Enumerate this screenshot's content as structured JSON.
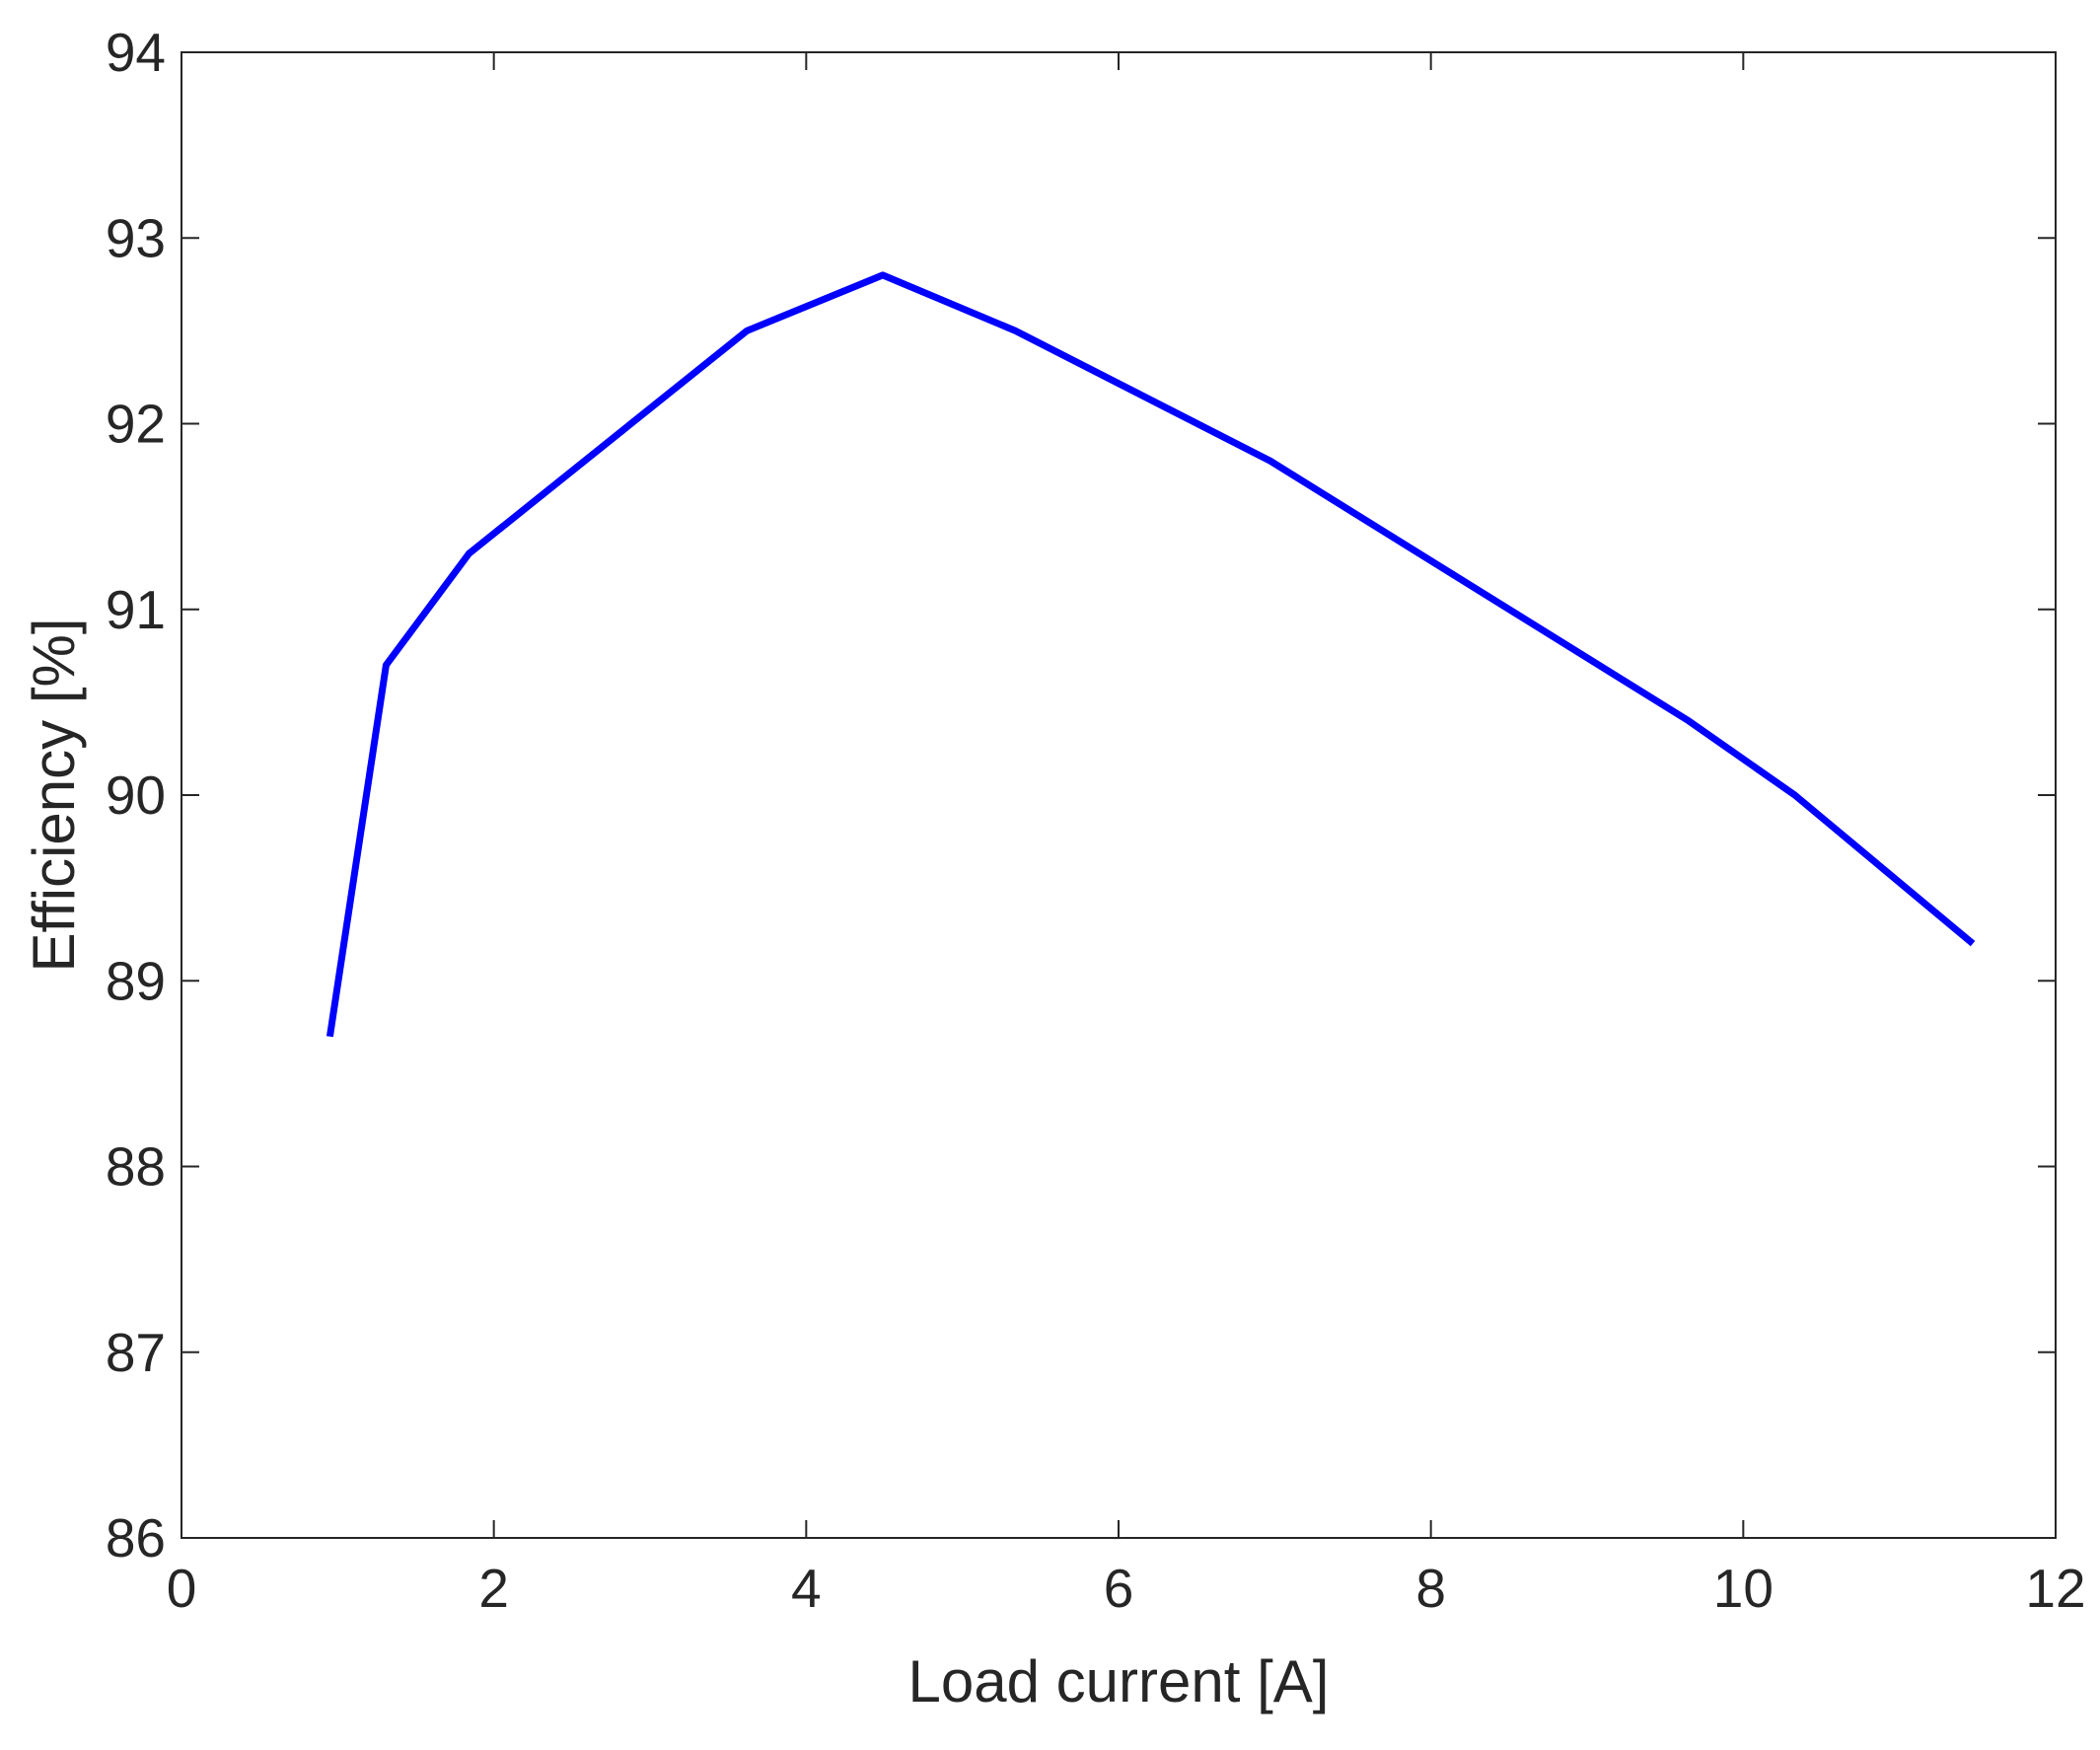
{
  "chart_data": {
    "type": "line",
    "x_label": "Load current [A]",
    "y_label": "Efficiency [%]",
    "x": [
      0.95,
      1.31,
      1.84,
      3.62,
      4.49,
      5.34,
      6.97,
      9.65,
      10.33,
      11.47
    ],
    "series": [
      {
        "name": "Efficiency",
        "color": "#0000ff",
        "values": [
          88.7,
          90.7,
          91.3,
          92.5,
          92.8,
          92.5,
          91.8,
          90.4,
          90.0,
          89.2
        ]
      }
    ],
    "xlim": [
      0,
      12
    ],
    "xticks": [
      0,
      2,
      4,
      6,
      8,
      10,
      12
    ],
    "ylim": [
      86,
      94
    ],
    "yticks": [
      86,
      87,
      88,
      89,
      90,
      91,
      92,
      93,
      94
    ],
    "grid": false
  }
}
